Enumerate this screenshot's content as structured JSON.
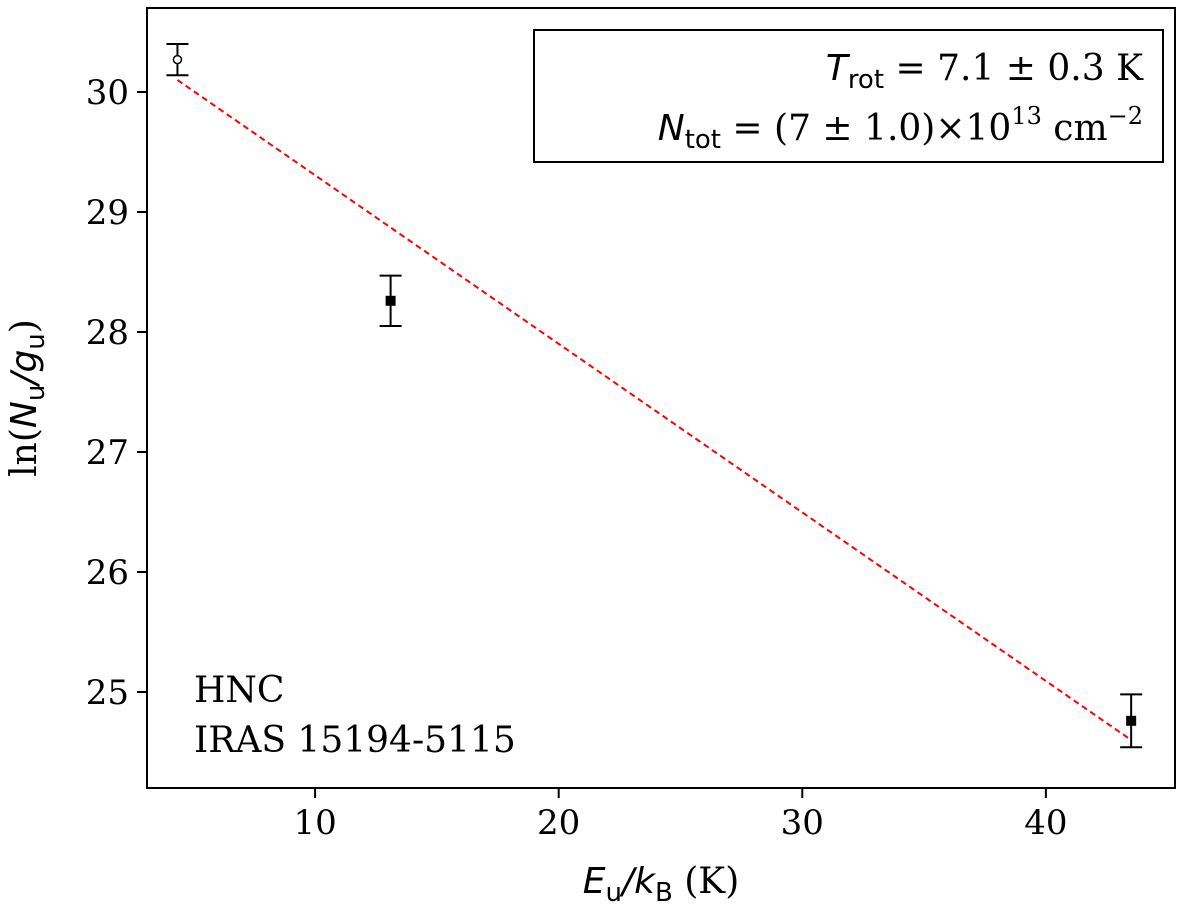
{
  "chart_data": {
    "type": "scatter",
    "xlabel": {
      "main": "E",
      "sub": "u",
      "sep": "/",
      "main2": "k",
      "sub2": "B",
      "unit": " (K)"
    },
    "ylabel": {
      "prefix": "ln(",
      "main": "N",
      "sub": "u",
      "sep": "/",
      "main2": "g",
      "sub2": "u",
      "suffix": ")"
    },
    "xlim": [
      3.1,
      45.3
    ],
    "ylim": [
      24.2,
      30.7
    ],
    "xticks": [
      10,
      20,
      30,
      40
    ],
    "yticks": [
      25,
      26,
      27,
      28,
      29,
      30
    ],
    "grid": false,
    "points": [
      {
        "x": 4.35,
        "y": 30.27,
        "err": 0.13,
        "marker": "open-circle"
      },
      {
        "x": 13.1,
        "y": 28.26,
        "err": 0.21,
        "marker": "filled-square"
      },
      {
        "x": 43.5,
        "y": 24.76,
        "err": 0.22,
        "marker": "filled-square"
      }
    ],
    "fit_line": {
      "x": [
        4.35,
        43.5
      ],
      "y": [
        30.1,
        24.6
      ],
      "color": "#ff0000",
      "style": "dashed"
    },
    "annotation_lines": [
      "HNC",
      "IRAS 15194-5115"
    ],
    "legend_box": {
      "placement": "top-right",
      "line1": {
        "sym": "T",
        "sub": "rot",
        "text": " = 7.1 ± 0.3 K"
      },
      "line2": {
        "sym": "N",
        "sub": "tot",
        "text": " = (7 ± 1.0)×10",
        "sup": "13",
        "unit": " cm",
        "unit_sup": "−2"
      }
    },
    "colors": {
      "fit": "#ff0000",
      "points": "#000000"
    }
  }
}
